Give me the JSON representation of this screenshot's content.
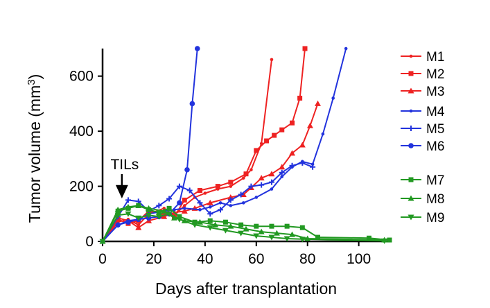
{
  "chart_data": {
    "type": "line",
    "title": "",
    "xlabel": "Days after transplantation",
    "ylabel_main": "Tumor volume (mm",
    "ylabel_sup": "3",
    "ylabel_end": ")",
    "xlim": [
      0,
      112
    ],
    "ylim": [
      0,
      700
    ],
    "xticks": [
      0,
      20,
      40,
      60,
      80,
      100
    ],
    "yticks": [
      0,
      200,
      400,
      600
    ],
    "legend_position": "right",
    "annotation": {
      "text": "TILs",
      "x": 7
    },
    "series": [
      {
        "name": "M1",
        "color": "#ee2222",
        "marker": "dot-small",
        "points": [
          [
            0,
            0
          ],
          [
            6,
            70
          ],
          [
            10,
            80
          ],
          [
            14,
            60
          ],
          [
            18,
            100
          ],
          [
            24,
            120
          ],
          [
            28,
            95
          ],
          [
            32,
            130
          ],
          [
            36,
            160
          ],
          [
            40,
            175
          ],
          [
            45,
            190
          ],
          [
            50,
            200
          ],
          [
            55,
            230
          ],
          [
            58,
            260
          ],
          [
            62,
            355
          ],
          [
            66,
            660
          ]
        ]
      },
      {
        "name": "M2",
        "color": "#ee2222",
        "marker": "square",
        "points": [
          [
            0,
            0
          ],
          [
            6,
            80
          ],
          [
            10,
            65
          ],
          [
            14,
            75
          ],
          [
            18,
            110
          ],
          [
            24,
            100
          ],
          [
            28,
            90
          ],
          [
            32,
            150
          ],
          [
            38,
            185
          ],
          [
            45,
            200
          ],
          [
            50,
            215
          ],
          [
            56,
            245
          ],
          [
            60,
            330
          ],
          [
            64,
            365
          ],
          [
            67,
            385
          ],
          [
            70,
            405
          ],
          [
            74,
            430
          ],
          [
            77,
            520
          ],
          [
            79,
            700
          ]
        ]
      },
      {
        "name": "M3",
        "color": "#ee2222",
        "marker": "triangle",
        "points": [
          [
            0,
            0
          ],
          [
            6,
            85
          ],
          [
            10,
            75
          ],
          [
            14,
            50
          ],
          [
            18,
            75
          ],
          [
            24,
            90
          ],
          [
            28,
            105
          ],
          [
            32,
            110
          ],
          [
            36,
            120
          ],
          [
            42,
            140
          ],
          [
            50,
            160
          ],
          [
            55,
            170
          ],
          [
            58,
            195
          ],
          [
            62,
            230
          ],
          [
            66,
            245
          ],
          [
            70,
            270
          ],
          [
            74,
            320
          ],
          [
            78,
            350
          ],
          [
            81,
            420
          ],
          [
            84,
            500
          ]
        ]
      },
      {
        "name": "M4",
        "color": "#2233dd",
        "marker": "dot-small",
        "points": [
          [
            0,
            0
          ],
          [
            6,
            60
          ],
          [
            10,
            75
          ],
          [
            14,
            80
          ],
          [
            18,
            100
          ],
          [
            24,
            110
          ],
          [
            28,
            115
          ],
          [
            32,
            120
          ],
          [
            38,
            115
          ],
          [
            42,
            125
          ],
          [
            46,
            140
          ],
          [
            50,
            130
          ],
          [
            55,
            140
          ],
          [
            60,
            160
          ],
          [
            66,
            190
          ],
          [
            70,
            235
          ],
          [
            74,
            270
          ],
          [
            78,
            290
          ],
          [
            82,
            280
          ],
          [
            86,
            390
          ],
          [
            90,
            520
          ],
          [
            95,
            700
          ]
        ]
      },
      {
        "name": "M5",
        "color": "#2233dd",
        "marker": "plus",
        "points": [
          [
            0,
            0
          ],
          [
            6,
            90
          ],
          [
            10,
            150
          ],
          [
            14,
            145
          ],
          [
            18,
            110
          ],
          [
            22,
            130
          ],
          [
            26,
            155
          ],
          [
            30,
            200
          ],
          [
            34,
            185
          ],
          [
            38,
            140
          ],
          [
            42,
            100
          ],
          [
            46,
            115
          ],
          [
            50,
            150
          ],
          [
            54,
            170
          ],
          [
            58,
            200
          ],
          [
            62,
            205
          ],
          [
            66,
            215
          ],
          [
            70,
            250
          ],
          [
            74,
            275
          ],
          [
            78,
            285
          ],
          [
            82,
            270
          ]
        ]
      },
      {
        "name": "M6",
        "color": "#2233dd",
        "marker": "dot-large",
        "points": [
          [
            0,
            0
          ],
          [
            6,
            60
          ],
          [
            10,
            70
          ],
          [
            14,
            80
          ],
          [
            18,
            85
          ],
          [
            22,
            90
          ],
          [
            26,
            100
          ],
          [
            30,
            140
          ],
          [
            33,
            260
          ],
          [
            35,
            500
          ],
          [
            37,
            700
          ]
        ]
      },
      {
        "name": "M7",
        "color": "#229922",
        "marker": "square",
        "points": [
          [
            0,
            0
          ],
          [
            6,
            110
          ],
          [
            10,
            120
          ],
          [
            14,
            130
          ],
          [
            18,
            115
          ],
          [
            22,
            105
          ],
          [
            26,
            120
          ],
          [
            30,
            90
          ],
          [
            36,
            70
          ],
          [
            42,
            75
          ],
          [
            48,
            70
          ],
          [
            54,
            60
          ],
          [
            60,
            55
          ],
          [
            66,
            55
          ],
          [
            72,
            55
          ],
          [
            78,
            50
          ],
          [
            84,
            15
          ],
          [
            104,
            12
          ],
          [
            112,
            5
          ]
        ]
      },
      {
        "name": "M8",
        "color": "#229922",
        "marker": "triangle",
        "points": [
          [
            0,
            0
          ],
          [
            6,
            115
          ],
          [
            10,
            125
          ],
          [
            14,
            130
          ],
          [
            18,
            120
          ],
          [
            24,
            110
          ],
          [
            28,
            85
          ],
          [
            32,
            75
          ],
          [
            38,
            70
          ],
          [
            44,
            60
          ],
          [
            50,
            55
          ],
          [
            56,
            45
          ],
          [
            62,
            35
          ],
          [
            68,
            30
          ],
          [
            74,
            25
          ],
          [
            80,
            10
          ],
          [
            110,
            5
          ]
        ]
      },
      {
        "name": "M9",
        "color": "#229922",
        "marker": "triangle-down",
        "points": [
          [
            0,
            0
          ],
          [
            6,
            95
          ],
          [
            10,
            100
          ],
          [
            14,
            85
          ],
          [
            18,
            95
          ],
          [
            22,
            90
          ],
          [
            26,
            100
          ],
          [
            30,
            80
          ],
          [
            36,
            60
          ],
          [
            42,
            50
          ],
          [
            48,
            40
          ],
          [
            54,
            30
          ],
          [
            60,
            20
          ],
          [
            66,
            15
          ],
          [
            72,
            10
          ],
          [
            78,
            8
          ],
          [
            110,
            2
          ]
        ]
      }
    ]
  }
}
